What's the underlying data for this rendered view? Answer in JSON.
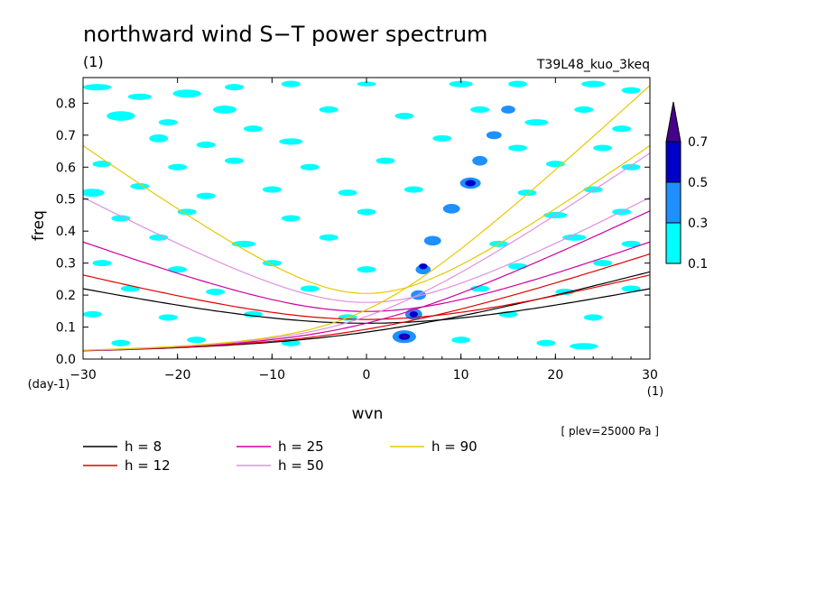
{
  "figure": {
    "title": "northward wind S−T power spectrum",
    "title_unit": "(1)",
    "case_name": "T39L48_kuo_3keq",
    "level_note": "[ plev=25000 Pa ]"
  },
  "chart_data": {
    "type": "heatmap",
    "title": "northward wind S−T power spectrum",
    "xlabel": "wvn",
    "xunit": "(1)",
    "ylabel": "freq",
    "yunit": "(day-1)",
    "xlim": [
      -30,
      30
    ],
    "ylim": [
      0.0,
      0.88
    ],
    "x_ticks": [
      -30,
      -20,
      -10,
      0,
      10,
      20,
      30
    ],
    "x_tick_labels": [
      "−30",
      "−20",
      "−10",
      "0",
      "10",
      "20",
      "30"
    ],
    "y_ticks": [
      0.0,
      0.1,
      0.2,
      0.3,
      0.4,
      0.5,
      0.6,
      0.7,
      0.8
    ],
    "y_tick_labels": [
      "0.0",
      "0.1",
      "0.2",
      "0.3",
      "0.4",
      "0.5",
      "0.6",
      "0.7",
      "0.8"
    ],
    "colorbar": {
      "levels": [
        0.1,
        0.3,
        0.5,
        0.7
      ],
      "labels": [
        "0.1",
        "0.3",
        "0.5",
        "0.7"
      ],
      "colors": [
        "#00ffff",
        "#1e90ff",
        "#0000c8",
        "#46008c"
      ],
      "extend": "max"
    },
    "patches": [
      {
        "x": -28.5,
        "y": 0.85,
        "w": 3,
        "h": 0.02,
        "level": 0
      },
      {
        "x": -24,
        "y": 0.82,
        "w": 2.5,
        "h": 0.02,
        "level": 0
      },
      {
        "x": -19,
        "y": 0.83,
        "w": 3,
        "h": 0.025,
        "level": 0
      },
      {
        "x": -14,
        "y": 0.85,
        "w": 2,
        "h": 0.02,
        "level": 0
      },
      {
        "x": -8,
        "y": 0.86,
        "w": 2,
        "h": 0.02,
        "level": 0
      },
      {
        "x": 0,
        "y": 0.86,
        "w": 2,
        "h": 0.015,
        "level": 0
      },
      {
        "x": 10,
        "y": 0.86,
        "w": 2.5,
        "h": 0.02,
        "level": 0
      },
      {
        "x": 16,
        "y": 0.86,
        "w": 2,
        "h": 0.02,
        "level": 0
      },
      {
        "x": 24,
        "y": 0.86,
        "w": 2.5,
        "h": 0.02,
        "level": 0
      },
      {
        "x": 28,
        "y": 0.84,
        "w": 2,
        "h": 0.02,
        "level": 0
      },
      {
        "x": -26,
        "y": 0.76,
        "w": 3,
        "h": 0.03,
        "level": 0
      },
      {
        "x": -21,
        "y": 0.74,
        "w": 2,
        "h": 0.02,
        "level": 0
      },
      {
        "x": -15,
        "y": 0.78,
        "w": 2.5,
        "h": 0.025,
        "level": 0
      },
      {
        "x": -12,
        "y": 0.72,
        "w": 2,
        "h": 0.02,
        "level": 0
      },
      {
        "x": -4,
        "y": 0.78,
        "w": 2,
        "h": 0.02,
        "level": 0
      },
      {
        "x": 4,
        "y": 0.76,
        "w": 2,
        "h": 0.02,
        "level": 0
      },
      {
        "x": 12,
        "y": 0.78,
        "w": 2,
        "h": 0.02,
        "level": 0
      },
      {
        "x": 18,
        "y": 0.74,
        "w": 2.5,
        "h": 0.02,
        "level": 0
      },
      {
        "x": 23,
        "y": 0.78,
        "w": 2,
        "h": 0.02,
        "level": 0
      },
      {
        "x": 27,
        "y": 0.72,
        "w": 2,
        "h": 0.02,
        "level": 0
      },
      {
        "x": -22,
        "y": 0.69,
        "w": 2,
        "h": 0.025,
        "level": 0
      },
      {
        "x": -17,
        "y": 0.67,
        "w": 2,
        "h": 0.02,
        "level": 0
      },
      {
        "x": -8,
        "y": 0.68,
        "w": 2.5,
        "h": 0.02,
        "level": 0
      },
      {
        "x": 8,
        "y": 0.69,
        "w": 2,
        "h": 0.02,
        "level": 0
      },
      {
        "x": 16,
        "y": 0.66,
        "w": 2,
        "h": 0.02,
        "level": 0
      },
      {
        "x": 25,
        "y": 0.66,
        "w": 2,
        "h": 0.02,
        "level": 0
      },
      {
        "x": -28,
        "y": 0.61,
        "w": 2,
        "h": 0.02,
        "level": 0
      },
      {
        "x": -20,
        "y": 0.6,
        "w": 2,
        "h": 0.02,
        "level": 0
      },
      {
        "x": -14,
        "y": 0.62,
        "w": 2,
        "h": 0.02,
        "level": 0
      },
      {
        "x": -6,
        "y": 0.6,
        "w": 2,
        "h": 0.02,
        "level": 0
      },
      {
        "x": 2,
        "y": 0.62,
        "w": 2,
        "h": 0.02,
        "level": 0
      },
      {
        "x": 20,
        "y": 0.61,
        "w": 2,
        "h": 0.02,
        "level": 0
      },
      {
        "x": 28,
        "y": 0.6,
        "w": 2,
        "h": 0.02,
        "level": 0
      },
      {
        "x": -29,
        "y": 0.52,
        "w": 2.5,
        "h": 0.025,
        "level": 0
      },
      {
        "x": -24,
        "y": 0.54,
        "w": 2,
        "h": 0.02,
        "level": 0
      },
      {
        "x": -17,
        "y": 0.51,
        "w": 2,
        "h": 0.02,
        "level": 0
      },
      {
        "x": -10,
        "y": 0.53,
        "w": 2,
        "h": 0.02,
        "level": 0
      },
      {
        "x": -2,
        "y": 0.52,
        "w": 2,
        "h": 0.02,
        "level": 0
      },
      {
        "x": 5,
        "y": 0.53,
        "w": 2,
        "h": 0.02,
        "level": 0
      },
      {
        "x": 17,
        "y": 0.52,
        "w": 2,
        "h": 0.02,
        "level": 0
      },
      {
        "x": 24,
        "y": 0.53,
        "w": 2,
        "h": 0.02,
        "level": 0
      },
      {
        "x": -26,
        "y": 0.44,
        "w": 2,
        "h": 0.02,
        "level": 0
      },
      {
        "x": -19,
        "y": 0.46,
        "w": 2,
        "h": 0.02,
        "level": 0
      },
      {
        "x": -8,
        "y": 0.44,
        "w": 2,
        "h": 0.02,
        "level": 0
      },
      {
        "x": 0,
        "y": 0.46,
        "w": 2,
        "h": 0.02,
        "level": 0
      },
      {
        "x": 20,
        "y": 0.45,
        "w": 2.5,
        "h": 0.02,
        "level": 0
      },
      {
        "x": 27,
        "y": 0.46,
        "w": 2,
        "h": 0.02,
        "level": 0
      },
      {
        "x": -22,
        "y": 0.38,
        "w": 2,
        "h": 0.02,
        "level": 0
      },
      {
        "x": -13,
        "y": 0.36,
        "w": 2.5,
        "h": 0.02,
        "level": 0
      },
      {
        "x": -4,
        "y": 0.38,
        "w": 2,
        "h": 0.02,
        "level": 0
      },
      {
        "x": 14,
        "y": 0.36,
        "w": 2,
        "h": 0.02,
        "level": 0
      },
      {
        "x": 22,
        "y": 0.38,
        "w": 2.5,
        "h": 0.02,
        "level": 0
      },
      {
        "x": 28,
        "y": 0.36,
        "w": 2,
        "h": 0.02,
        "level": 0
      },
      {
        "x": -28,
        "y": 0.3,
        "w": 2,
        "h": 0.02,
        "level": 0
      },
      {
        "x": -20,
        "y": 0.28,
        "w": 2,
        "h": 0.02,
        "level": 0
      },
      {
        "x": -10,
        "y": 0.3,
        "w": 2,
        "h": 0.02,
        "level": 0
      },
      {
        "x": 0,
        "y": 0.28,
        "w": 2,
        "h": 0.02,
        "level": 0
      },
      {
        "x": 16,
        "y": 0.29,
        "w": 2,
        "h": 0.02,
        "level": 0
      },
      {
        "x": 25,
        "y": 0.3,
        "w": 2,
        "h": 0.02,
        "level": 0
      },
      {
        "x": -25,
        "y": 0.22,
        "w": 2,
        "h": 0.02,
        "level": 0
      },
      {
        "x": -16,
        "y": 0.21,
        "w": 2,
        "h": 0.02,
        "level": 0
      },
      {
        "x": -6,
        "y": 0.22,
        "w": 2,
        "h": 0.02,
        "level": 0
      },
      {
        "x": 12,
        "y": 0.22,
        "w": 2,
        "h": 0.02,
        "level": 0
      },
      {
        "x": 21,
        "y": 0.21,
        "w": 2,
        "h": 0.02,
        "level": 0
      },
      {
        "x": 28,
        "y": 0.22,
        "w": 2,
        "h": 0.02,
        "level": 0
      },
      {
        "x": -29,
        "y": 0.14,
        "w": 2,
        "h": 0.02,
        "level": 0
      },
      {
        "x": -21,
        "y": 0.13,
        "w": 2,
        "h": 0.02,
        "level": 0
      },
      {
        "x": -12,
        "y": 0.14,
        "w": 2,
        "h": 0.02,
        "level": 0
      },
      {
        "x": -2,
        "y": 0.13,
        "w": 2,
        "h": 0.02,
        "level": 0
      },
      {
        "x": 15,
        "y": 0.14,
        "w": 2,
        "h": 0.02,
        "level": 0
      },
      {
        "x": 24,
        "y": 0.13,
        "w": 2,
        "h": 0.02,
        "level": 0
      },
      {
        "x": -26,
        "y": 0.05,
        "w": 2,
        "h": 0.02,
        "level": 0
      },
      {
        "x": -18,
        "y": 0.06,
        "w": 2,
        "h": 0.02,
        "level": 0
      },
      {
        "x": -8,
        "y": 0.05,
        "w": 2,
        "h": 0.02,
        "level": 0
      },
      {
        "x": 10,
        "y": 0.06,
        "w": 2,
        "h": 0.02,
        "level": 0
      },
      {
        "x": 19,
        "y": 0.05,
        "w": 2,
        "h": 0.02,
        "level": 0
      },
      {
        "x": 23,
        "y": 0.04,
        "w": 3,
        "h": 0.02,
        "level": 0
      },
      {
        "x": 4,
        "y": 0.07,
        "w": 2.5,
        "h": 0.04,
        "level": 1
      },
      {
        "x": 5,
        "y": 0.14,
        "w": 1.8,
        "h": 0.035,
        "level": 1
      },
      {
        "x": 5.5,
        "y": 0.2,
        "w": 1.6,
        "h": 0.03,
        "level": 1
      },
      {
        "x": 6,
        "y": 0.28,
        "w": 1.6,
        "h": 0.03,
        "level": 1
      },
      {
        "x": 7,
        "y": 0.37,
        "w": 1.8,
        "h": 0.03,
        "level": 1
      },
      {
        "x": 9,
        "y": 0.47,
        "w": 1.8,
        "h": 0.03,
        "level": 1
      },
      {
        "x": 11,
        "y": 0.55,
        "w": 2.2,
        "h": 0.035,
        "level": 1
      },
      {
        "x": 12,
        "y": 0.62,
        "w": 1.6,
        "h": 0.03,
        "level": 1
      },
      {
        "x": 13.5,
        "y": 0.7,
        "w": 1.6,
        "h": 0.025,
        "level": 1
      },
      {
        "x": 15,
        "y": 0.78,
        "w": 1.5,
        "h": 0.025,
        "level": 1
      },
      {
        "x": 4,
        "y": 0.07,
        "w": 1.2,
        "h": 0.02,
        "level": 2
      },
      {
        "x": 5,
        "y": 0.14,
        "w": 0.9,
        "h": 0.018,
        "level": 2
      },
      {
        "x": 6,
        "y": 0.29,
        "w": 0.9,
        "h": 0.018,
        "level": 2
      },
      {
        "x": 11,
        "y": 0.55,
        "w": 1.1,
        "h": 0.02,
        "level": 2
      },
      {
        "x": 4,
        "y": 0.07,
        "w": 0.5,
        "h": 0.01,
        "level": 3
      }
    ],
    "dispersion_curves": [
      {
        "label": "h = 8",
        "name": "h =  8",
        "h": 8,
        "color": "#000000"
      },
      {
        "label": "h = 12",
        "name": "h = 12",
        "h": 12,
        "color": "#e00000"
      },
      {
        "label": "h = 25",
        "name": "h = 25",
        "h": 25,
        "color": "#d000a0"
      },
      {
        "label": "h = 50",
        "name": "h = 50",
        "h": 50,
        "color": "#e090e0"
      },
      {
        "label": "h = 90",
        "name": "h = 90",
        "h": 90,
        "color": "#e8c800"
      }
    ]
  }
}
